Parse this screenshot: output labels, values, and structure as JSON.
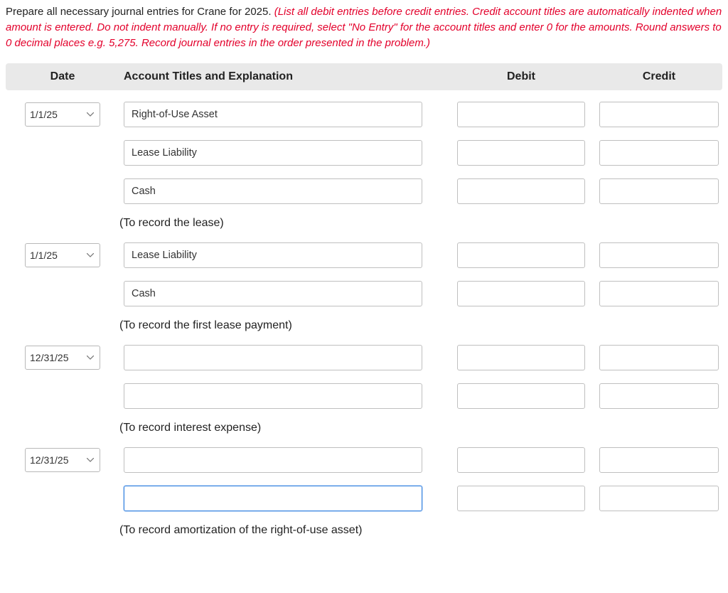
{
  "instructions": {
    "black": "Prepare all necessary journal entries for Crane for 2025. ",
    "red": "(List all debit entries before credit entries. Credit account titles are automatically indented when amount is entered. Do not indent manually. If no entry is required, select \"No Entry\" for the account titles and enter 0 for the amounts. Round answers to 0 decimal places e.g. 5,275. Record journal entries in the order presented in the problem.)"
  },
  "headers": {
    "date": "Date",
    "account": "Account Titles and Explanation",
    "debit": "Debit",
    "credit": "Credit"
  },
  "entries": [
    {
      "date": "1/1/25",
      "lines": [
        {
          "account": "Right-of-Use Asset",
          "debit": "",
          "credit": ""
        },
        {
          "account": "Lease Liability",
          "debit": "",
          "credit": ""
        },
        {
          "account": "Cash",
          "debit": "",
          "credit": ""
        }
      ],
      "explanation": "(To record the lease)"
    },
    {
      "date": "1/1/25",
      "lines": [
        {
          "account": "Lease Liability",
          "debit": "",
          "credit": ""
        },
        {
          "account": "Cash",
          "debit": "",
          "credit": ""
        }
      ],
      "explanation": "(To record the first lease payment)"
    },
    {
      "date": "12/31/25",
      "lines": [
        {
          "account": "",
          "debit": "",
          "credit": ""
        },
        {
          "account": "",
          "debit": "",
          "credit": ""
        }
      ],
      "explanation": "(To record interest expense)"
    },
    {
      "date": "12/31/25",
      "lines": [
        {
          "account": "",
          "debit": "",
          "credit": ""
        },
        {
          "account": "",
          "debit": "",
          "credit": "",
          "focused": true
        }
      ],
      "explanation": "(To record amortization of the right-of-use asset)"
    }
  ],
  "dateOptions": [
    "1/1/25",
    "12/31/25"
  ]
}
